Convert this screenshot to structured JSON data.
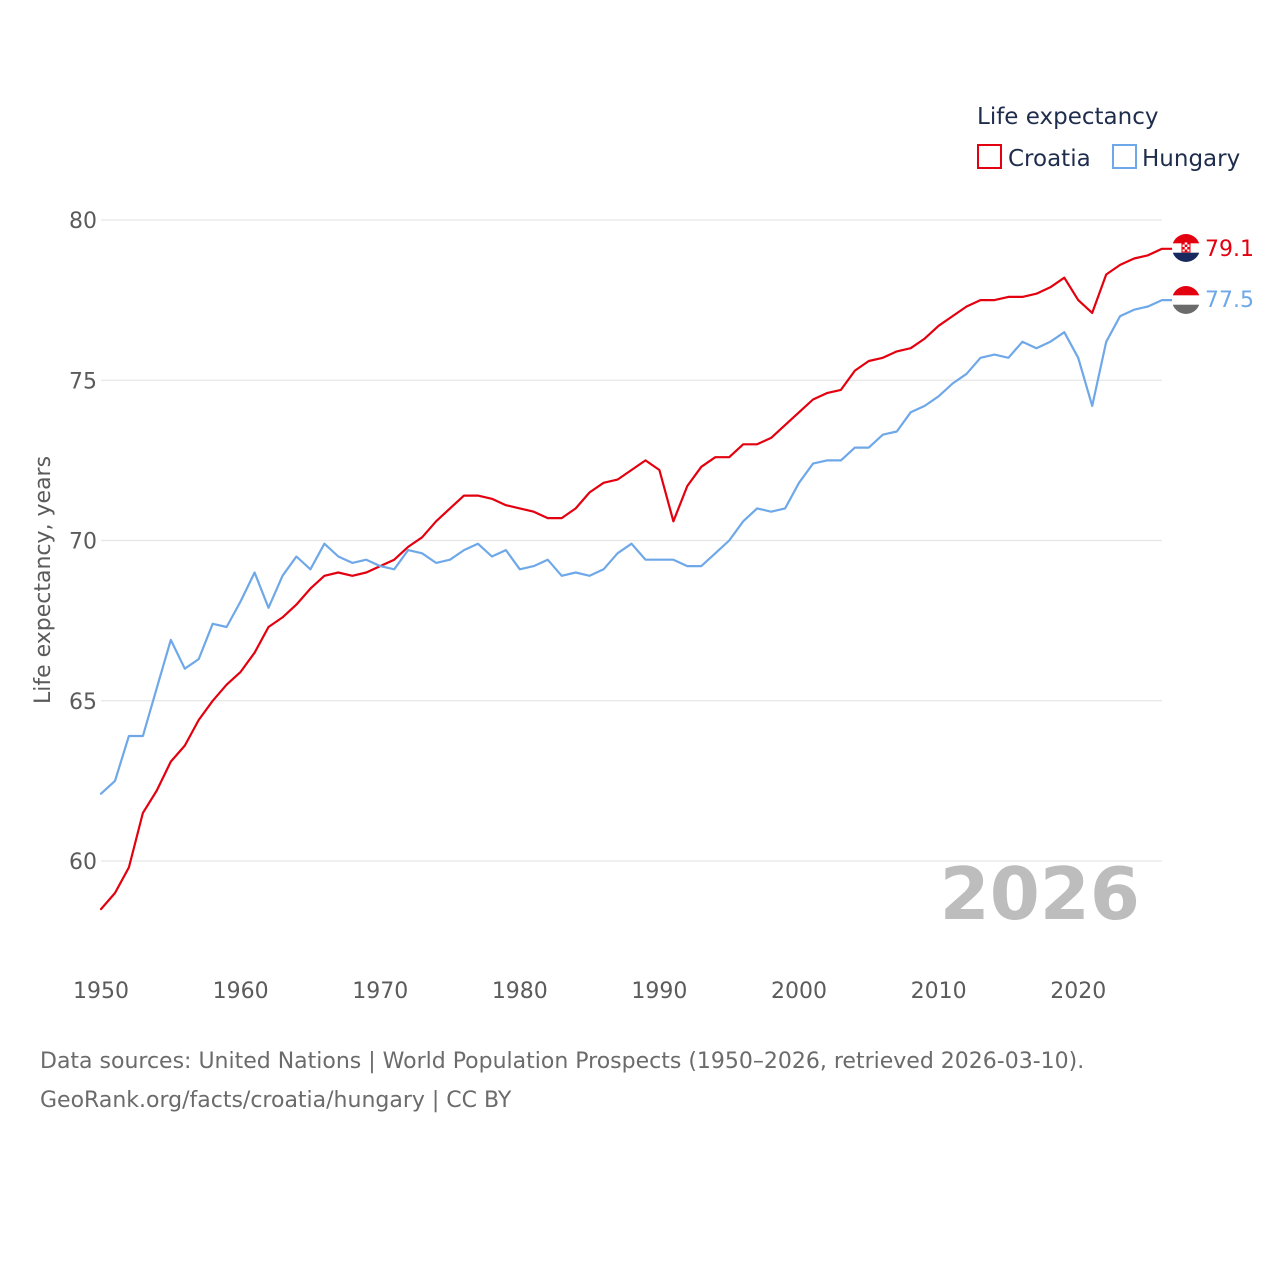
{
  "chart_data": {
    "type": "line",
    "title": "",
    "ylabel": "Life expectancy, years",
    "xlabel": "",
    "xlim": [
      1950,
      2026
    ],
    "ylim": [
      58.5,
      80
    ],
    "yticks": [
      "60",
      "65",
      "70",
      "75",
      "80"
    ],
    "xticks": [
      "1950",
      "1960",
      "1970",
      "1980",
      "1990",
      "2000",
      "2010",
      "2020"
    ],
    "grid": true,
    "legend_title": "Life expectancy",
    "legend_position": "top-right",
    "current_year": "2026",
    "x": [
      1950,
      1951,
      1952,
      1953,
      1954,
      1955,
      1956,
      1957,
      1958,
      1959,
      1960,
      1961,
      1962,
      1963,
      1964,
      1965,
      1966,
      1967,
      1968,
      1969,
      1970,
      1971,
      1972,
      1973,
      1974,
      1975,
      1976,
      1977,
      1978,
      1979,
      1980,
      1981,
      1982,
      1983,
      1984,
      1985,
      1986,
      1987,
      1988,
      1989,
      1990,
      1991,
      1992,
      1993,
      1994,
      1995,
      1996,
      1997,
      1998,
      1999,
      2000,
      2001,
      2002,
      2003,
      2004,
      2005,
      2006,
      2007,
      2008,
      2009,
      2010,
      2011,
      2012,
      2013,
      2014,
      2015,
      2016,
      2017,
      2018,
      2019,
      2020,
      2021,
      2022,
      2023,
      2024,
      2025,
      2026
    ],
    "series": [
      {
        "name": "Croatia",
        "color": "#e3000f",
        "end_label": "79.1",
        "values": [
          58.5,
          59.0,
          59.8,
          61.5,
          62.2,
          63.1,
          63.6,
          64.4,
          65.0,
          65.5,
          65.9,
          66.5,
          67.3,
          67.6,
          68.0,
          68.5,
          68.9,
          69.0,
          68.9,
          69.0,
          69.2,
          69.4,
          69.8,
          70.1,
          70.6,
          71.0,
          71.4,
          71.4,
          71.3,
          71.1,
          71.0,
          70.9,
          70.7,
          70.7,
          71.0,
          71.5,
          71.8,
          71.9,
          72.2,
          72.5,
          72.2,
          70.6,
          71.7,
          72.3,
          72.6,
          72.6,
          73.0,
          73.0,
          73.2,
          73.6,
          74.0,
          74.4,
          74.6,
          74.7,
          75.3,
          75.6,
          75.7,
          75.9,
          76.0,
          76.3,
          76.7,
          77.0,
          77.3,
          77.5,
          77.5,
          77.6,
          77.6,
          77.7,
          77.9,
          78.2,
          77.5,
          77.1,
          78.3,
          78.6,
          78.8,
          78.9,
          79.1
        ]
      },
      {
        "name": "Hungary",
        "color": "#6ea8e8",
        "end_label": "77.5",
        "values": [
          62.1,
          62.5,
          63.9,
          63.9,
          65.4,
          66.9,
          66.0,
          66.3,
          67.4,
          67.3,
          68.1,
          69.0,
          67.9,
          68.9,
          69.5,
          69.1,
          69.9,
          69.5,
          69.3,
          69.4,
          69.2,
          69.1,
          69.7,
          69.6,
          69.3,
          69.4,
          69.7,
          69.9,
          69.5,
          69.7,
          69.1,
          69.2,
          69.4,
          68.9,
          69.0,
          68.9,
          69.1,
          69.6,
          69.9,
          69.4,
          69.4,
          69.4,
          69.2,
          69.2,
          69.6,
          70.0,
          70.6,
          71.0,
          70.9,
          71.0,
          71.8,
          72.4,
          72.5,
          72.5,
          72.9,
          72.9,
          73.3,
          73.4,
          74.0,
          74.2,
          74.5,
          74.9,
          75.2,
          75.7,
          75.8,
          75.7,
          76.2,
          76.0,
          76.2,
          76.5,
          75.7,
          74.2,
          76.2,
          77.0,
          77.2,
          77.3,
          77.5
        ]
      }
    ]
  },
  "footer": {
    "line1": "Data sources: United Nations | World Population Prospects (1950–2026, retrieved 2026-03-10).",
    "line2": "GeoRank.org/facts/croatia/hungary | CC BY"
  }
}
